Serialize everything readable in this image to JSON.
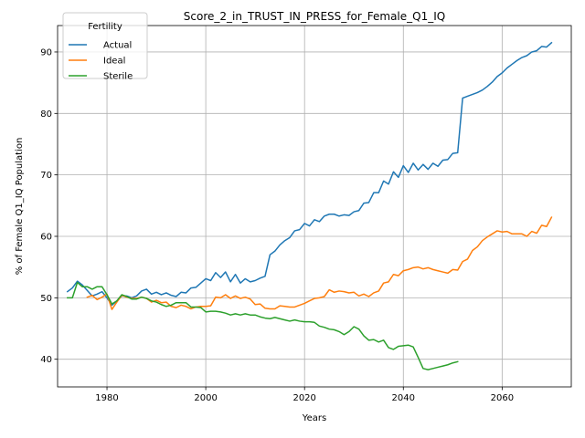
{
  "chart_data": {
    "type": "line",
    "title": "Score_2_in_TRUST_IN_PRESS_for_Female_Q1_IQ",
    "xlabel": "Years",
    "ylabel": "% of Female Q1_IQ Population",
    "xlim": [
      1970,
      2074
    ],
    "ylim": [
      35.5,
      94.3
    ],
    "x_ticks": [
      1980,
      2000,
      2020,
      2040,
      2060
    ],
    "y_ticks": [
      40,
      50,
      60,
      70,
      80,
      90
    ],
    "grid": true,
    "legend": {
      "title": "Fertility",
      "placement": "top-left"
    },
    "series": [
      {
        "name": "Actual",
        "color": "#1f77b4",
        "x": [
          1972,
          1973,
          1974,
          1975,
          1976,
          1977,
          1978,
          1979,
          1980,
          1981,
          1982,
          1983,
          1984,
          1985,
          1986,
          1987,
          1988,
          1989,
          1990,
          1991,
          1992,
          1993,
          1994,
          1995,
          1996,
          1997,
          1998,
          1999,
          2000,
          2001,
          2002,
          2003,
          2004,
          2005,
          2006,
          2007,
          2008,
          2009,
          2010,
          2011,
          2012,
          2013,
          2014,
          2015,
          2016,
          2017,
          2018,
          2019,
          2020,
          2021,
          2022,
          2023,
          2024,
          2025,
          2026,
          2027,
          2028,
          2029,
          2030,
          2031,
          2032,
          2033,
          2034,
          2035,
          2036,
          2037,
          2038,
          2039,
          2040,
          2041,
          2042,
          2043,
          2044,
          2045,
          2046,
          2047,
          2048,
          2049,
          2050,
          2051,
          2052,
          2053,
          2054,
          2055,
          2056,
          2057,
          2058,
          2059,
          2060,
          2061,
          2062,
          2063,
          2064,
          2065,
          2066,
          2067,
          2068,
          2069,
          2070
        ],
        "values": [
          51.0,
          51.6,
          52.7,
          52.1,
          51.2,
          50.3,
          50.6,
          51.0,
          50.0,
          48.8,
          49.5,
          50.3,
          50.3,
          50.0,
          50.3,
          51.1,
          51.4,
          50.6,
          50.9,
          50.5,
          50.8,
          50.4,
          50.2,
          50.9,
          50.8,
          51.6,
          51.7,
          52.4,
          53.1,
          52.8,
          54.1,
          53.3,
          54.2,
          52.6,
          53.8,
          52.4,
          53.1,
          52.6,
          52.8,
          53.2,
          53.5,
          57.0,
          57.6,
          58.6,
          59.3,
          59.8,
          60.9,
          61.1,
          62.1,
          61.7,
          62.7,
          62.4,
          63.3,
          63.6,
          63.6,
          63.3,
          63.5,
          63.4,
          64.0,
          64.2,
          65.4,
          65.5,
          67.1,
          67.1,
          69.0,
          68.5,
          70.5,
          69.6,
          71.5,
          70.4,
          71.9,
          70.8,
          71.7,
          70.9,
          71.9,
          71.4,
          72.4,
          72.5,
          73.5,
          73.6,
          82.5,
          82.8,
          83.1,
          83.4,
          83.8,
          84.4,
          85.1,
          86.0,
          86.6,
          87.4,
          88.0,
          88.6,
          89.1,
          89.4,
          90.0,
          90.2,
          90.9,
          90.8,
          91.5
        ]
      },
      {
        "name": "Ideal",
        "color": "#ff7f0e",
        "x": [
          1976,
          1977,
          1978,
          1979,
          1980,
          1981,
          1982,
          1983,
          1984,
          1985,
          1986,
          1987,
          1988,
          1989,
          1990,
          1991,
          1992,
          1993,
          1994,
          1995,
          1996,
          1997,
          1998,
          1999,
          2000,
          2001,
          2002,
          2003,
          2004,
          2005,
          2006,
          2007,
          2008,
          2009,
          2010,
          2011,
          2012,
          2013,
          2014,
          2015,
          2016,
          2017,
          2018,
          2019,
          2020,
          2021,
          2022,
          2023,
          2024,
          2025,
          2026,
          2027,
          2028,
          2029,
          2030,
          2031,
          2032,
          2033,
          2034,
          2035,
          2036,
          2037,
          2038,
          2039,
          2040,
          2041,
          2042,
          2043,
          2044,
          2045,
          2046,
          2047,
          2048,
          2049,
          2050,
          2051,
          2052,
          2053,
          2054,
          2055,
          2056,
          2057,
          2058,
          2059,
          2060,
          2061,
          2062,
          2063,
          2064,
          2065,
          2066,
          2067,
          2068,
          2069,
          2070
        ],
        "values": [
          50.1,
          50.4,
          49.7,
          50.1,
          50.6,
          48.1,
          49.3,
          50.4,
          50.1,
          49.9,
          49.9,
          50.1,
          49.9,
          49.3,
          49.6,
          49.2,
          49.3,
          48.6,
          48.4,
          48.8,
          48.6,
          48.2,
          48.5,
          48.6,
          48.6,
          48.7,
          50.1,
          50.0,
          50.5,
          49.9,
          50.3,
          49.9,
          50.1,
          49.8,
          48.9,
          49.0,
          48.3,
          48.2,
          48.2,
          48.7,
          48.6,
          48.5,
          48.5,
          48.8,
          49.1,
          49.5,
          49.9,
          50.0,
          50.2,
          51.3,
          50.9,
          51.1,
          51.0,
          50.8,
          50.9,
          50.3,
          50.6,
          50.2,
          50.8,
          51.1,
          52.4,
          52.6,
          53.8,
          53.6,
          54.4,
          54.6,
          54.9,
          55.0,
          54.7,
          54.9,
          54.6,
          54.4,
          54.2,
          54.0,
          54.6,
          54.5,
          55.9,
          56.3,
          57.7,
          58.3,
          59.3,
          59.9,
          60.4,
          60.9,
          60.7,
          60.8,
          60.4,
          60.4,
          60.4,
          60.0,
          60.8,
          60.5,
          61.8,
          61.6,
          63.1
        ]
      },
      {
        "name": "Sterile",
        "color": "#2ca02c",
        "x": [
          1972,
          1973,
          1974,
          1975,
          1976,
          1977,
          1978,
          1979,
          1980,
          1981,
          1982,
          1983,
          1984,
          1985,
          1986,
          1987,
          1988,
          1989,
          1990,
          1991,
          1992,
          1993,
          1994,
          1995,
          1996,
          1997,
          1998,
          1999,
          2000,
          2001,
          2002,
          2003,
          2004,
          2005,
          2006,
          2007,
          2008,
          2009,
          2010,
          2011,
          2012,
          2013,
          2014,
          2015,
          2016,
          2017,
          2018,
          2019,
          2020,
          2021,
          2022,
          2023,
          2024,
          2025,
          2026,
          2027,
          2028,
          2029,
          2030,
          2031,
          2032,
          2033,
          2034,
          2035,
          2036,
          2037,
          2038,
          2039,
          2040,
          2041,
          2042,
          2043,
          2044,
          2045,
          2046,
          2047,
          2048,
          2049,
          2050,
          2051
        ],
        "values": [
          50.0,
          50.0,
          52.5,
          51.8,
          51.8,
          51.4,
          51.8,
          51.8,
          50.5,
          49.0,
          49.5,
          50.5,
          50.2,
          49.8,
          49.8,
          50.1,
          49.9,
          49.5,
          49.3,
          48.9,
          48.6,
          48.8,
          49.2,
          49.2,
          49.2,
          48.5,
          48.5,
          48.4,
          47.7,
          47.8,
          47.8,
          47.7,
          47.5,
          47.2,
          47.4,
          47.2,
          47.4,
          47.2,
          47.2,
          46.9,
          46.7,
          46.6,
          46.8,
          46.6,
          46.4,
          46.2,
          46.4,
          46.2,
          46.1,
          46.1,
          46.0,
          45.4,
          45.2,
          44.9,
          44.8,
          44.5,
          44.0,
          44.5,
          45.3,
          44.9,
          43.8,
          43.1,
          43.2,
          42.8,
          43.1,
          41.9,
          41.6,
          42.1,
          42.2,
          42.3,
          42.0,
          40.3,
          38.5,
          38.3,
          38.5,
          38.7,
          38.9,
          39.1,
          39.4,
          39.6
        ]
      }
    ]
  }
}
